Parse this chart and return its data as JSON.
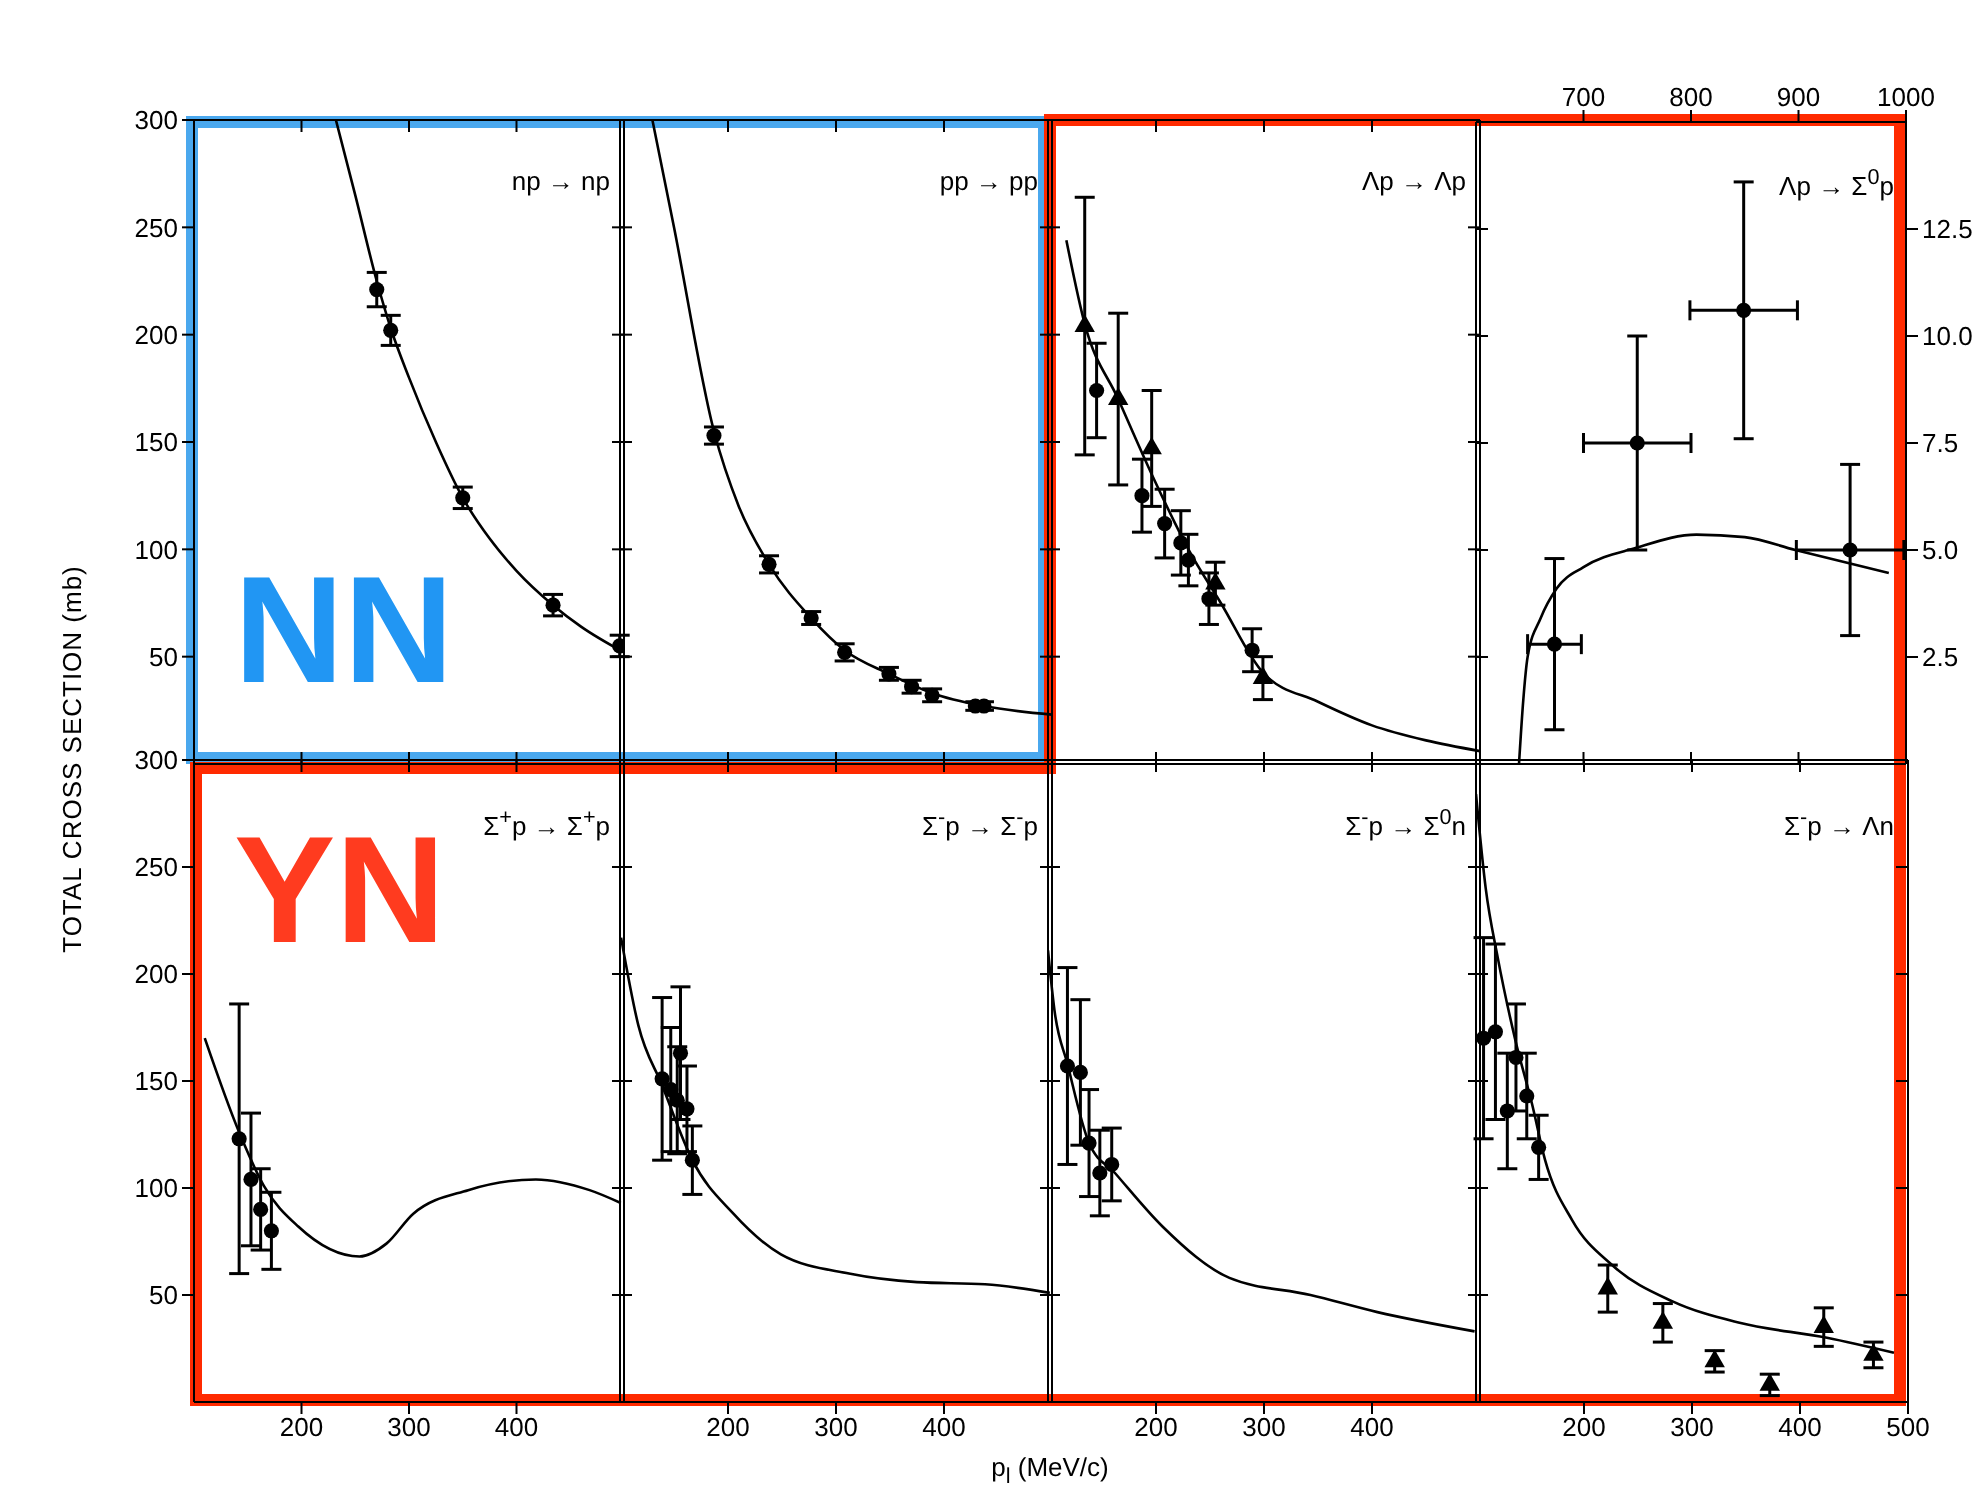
{
  "chart_data": [
    {
      "type": "scatter",
      "title": "np → np",
      "ylabel": "TOTAL CROSS SECTION (mb)",
      "annotations": [
        "NN"
      ],
      "xlim": [
        100,
        500
      ],
      "xticks": [
        200,
        300,
        400
      ],
      "ylim": [
        0,
        300
      ],
      "yticks": [
        50,
        100,
        150,
        200,
        250,
        300
      ],
      "tick_labels": "y",
      "series": [
        {
          "type": "line",
          "marker": "none",
          "color": "#000000",
          "x": [
            232,
            250,
            270,
            283,
            300,
            325,
            350,
            375,
            400,
            434,
            460,
            500
          ],
          "values": [
            300,
            265,
            225,
            203,
            180,
            150,
            124,
            105,
            90,
            74,
            64,
            52
          ]
        },
        {
          "marker": "circle",
          "color": "#000000",
          "x": [
            270,
            283,
            350,
            434,
            496
          ],
          "values": [
            221,
            202,
            124,
            74,
            55
          ],
          "errors": [
            8,
            7,
            5,
            5,
            5
          ]
        }
      ]
    },
    {
      "type": "scatter",
      "title": "pp → pp",
      "xlim": [
        100,
        500
      ],
      "xticks": [
        200,
        300,
        400
      ],
      "ylim": [
        0,
        300
      ],
      "yticks": [
        50,
        100,
        150,
        200,
        250,
        300
      ],
      "tick_labels": false,
      "series": [
        {
          "type": "line",
          "marker": "none",
          "color": "#000000",
          "x": [
            130,
            150,
            187,
            210,
            238,
            277,
            308,
            349,
            389,
            437,
            500
          ],
          "values": [
            300,
            250,
            155,
            120,
            93,
            68,
            53,
            42,
            33,
            27,
            23
          ]
        },
        {
          "marker": "circle",
          "color": "#000000",
          "x": [
            187,
            238,
            277,
            308,
            349,
            370,
            389,
            429,
            437
          ],
          "values": [
            153,
            93,
            68,
            52,
            42,
            36,
            32,
            27,
            27
          ],
          "errors": [
            4,
            4,
            3,
            4,
            3,
            3,
            3,
            2,
            2
          ]
        }
      ]
    },
    {
      "type": "scatter",
      "title": "Λp → Λp",
      "xlim": [
        100,
        500
      ],
      "xticks": [
        200,
        300,
        400
      ],
      "ylim": [
        0,
        300
      ],
      "yticks": [
        50,
        100,
        150,
        200,
        250,
        300
      ],
      "tick_labels": false,
      "series": [
        {
          "type": "line",
          "marker": "none",
          "color": "#000000",
          "x": [
            117,
            134,
            165,
            196,
            230,
            260,
            300,
            350,
            400,
            450,
            500
          ],
          "values": [
            244,
            205,
            170,
            135,
            100,
            75,
            42,
            29,
            18,
            11,
            6
          ]
        },
        {
          "marker": "circle",
          "color": "#000000",
          "x": [
            145,
            187,
            208,
            223,
            230,
            249,
            289
          ],
          "values": [
            174,
            125,
            112,
            103,
            95,
            77,
            53
          ],
          "errors": [
            22,
            17,
            16,
            15,
            12,
            12,
            10
          ]
        },
        {
          "marker": "triangle",
          "color": "#000000",
          "x": [
            134,
            165,
            196,
            255,
            299
          ],
          "values": [
            204,
            170,
            147,
            84,
            40
          ],
          "errors": [
            60,
            40,
            27,
            10,
            10
          ]
        }
      ]
    },
    {
      "type": "scatter",
      "title": "Λp → Σ$^{0}$p",
      "xlim": [
        600,
        1000
      ],
      "xticks": [
        700,
        800,
        900,
        1000
      ],
      "ylim": [
        0,
        15
      ],
      "yticks": [
        {
          "value": 2.5,
          "label": "2.5"
        },
        {
          "value": 5,
          "label": "5.0"
        },
        {
          "value": 7.5,
          "label": "7.5"
        },
        {
          "value": 10,
          "label": "10.0"
        },
        {
          "value": 12.5,
          "label": "12.5"
        }
      ],
      "series": [
        {
          "type": "line",
          "marker": "none",
          "color": "#000000",
          "x": [
            640,
            644,
            648,
            660,
            675,
            700,
            749,
            805,
            850,
            897,
            984
          ],
          "values": [
            0,
            1.5,
            2.5,
            3.4,
            4.1,
            4.6,
            5.05,
            5.36,
            5.3,
            5.0,
            4.46
          ]
        },
        {
          "marker": "circle",
          "color": "#000000",
          "x": [
            673,
            750,
            849,
            948
          ],
          "values": [
            2.8,
            7.5,
            10.6,
            5.0
          ],
          "errors": [
            2.0,
            2.5,
            3.0,
            2.0
          ],
          "xerrors": [
            25,
            50,
            50,
            50
          ]
        }
      ]
    },
    {
      "type": "scatter",
      "title": "Σ$^{+}$p → Σ$^{+}$p",
      "annotations": [
        "YN"
      ],
      "xlim": [
        100,
        500
      ],
      "xticks": [
        200,
        300,
        400
      ],
      "ylim": [
        0,
        300
      ],
      "yticks": [
        50,
        100,
        150,
        200,
        250,
        300
      ],
      "series": [
        {
          "type": "line",
          "marker": "none",
          "color": "#000000",
          "x": [
            110,
            142,
            165,
            197,
            254,
            279,
            304,
            355,
            418,
            468,
            497
          ],
          "values": [
            170,
            126,
            101,
            82,
            68,
            74,
            88,
            99,
            104,
            99,
            93
          ]
        },
        {
          "marker": "circle",
          "color": "#000000",
          "x": [
            142,
            153,
            162,
            172
          ],
          "values": [
            123,
            104,
            90,
            80
          ],
          "errors": [
            63,
            31,
            19,
            18
          ]
        }
      ]
    },
    {
      "type": "scatter",
      "title": "Σ$^{-}$p → Σ$^{-}$p",
      "xlabel": "p$_{l}$ (MeV/c)",
      "xlim": [
        100,
        500
      ],
      "xticks": [
        200,
        300,
        400
      ],
      "ylim": [
        0,
        300
      ],
      "yticks": [
        50,
        100,
        150,
        200,
        250,
        300
      ],
      "tick_labels": "x",
      "series": [
        {
          "type": "line",
          "marker": "none",
          "color": "#000000",
          "x": [
            101,
            117,
            139,
            167,
            205,
            249,
            312,
            375,
            438,
            498
          ],
          "values": [
            217,
            176,
            148,
            113,
            88,
            69,
            60,
            56,
            55,
            51
          ]
        },
        {
          "marker": "circle",
          "color": "#000000",
          "x": [
            139,
            147,
            156,
            153,
            162,
            167
          ],
          "values": [
            151,
            146,
            163,
            141,
            137,
            113
          ],
          "errors": [
            38,
            29,
            31,
            25,
            20,
            16
          ]
        }
      ]
    },
    {
      "type": "scatter",
      "title": "Σ$^{-}$p → Σ$^{0}$n",
      "xlim": [
        100,
        500
      ],
      "xticks": [
        200,
        300,
        400
      ],
      "ylim": [
        0,
        300
      ],
      "yticks": [
        50,
        100,
        150,
        200,
        250,
        300
      ],
      "tick_labels": "x",
      "series": [
        {
          "type": "line",
          "marker": "none",
          "color": "#000000",
          "x": [
            100,
            106,
            118,
            138,
            162,
            206,
            268,
            343,
            405,
            495
          ],
          "values": [
            211,
            183,
            158,
            121,
            107,
            82,
            58,
            50,
            42,
            33
          ]
        },
        {
          "marker": "circle",
          "color": "#000000",
          "x": [
            118,
            130,
            138,
            148,
            159
          ],
          "values": [
            157,
            154,
            121,
            107,
            111
          ],
          "errors": [
            46,
            34,
            25,
            20,
            17
          ]
        }
      ]
    },
    {
      "type": "scatter",
      "title": "Σ$^{-}$p → Λn",
      "xlim": [
        100,
        500
      ],
      "xticks": [
        200,
        300,
        400,
        500
      ],
      "ylim": [
        0,
        300
      ],
      "yticks": [
        50,
        100,
        150,
        200,
        250,
        300
      ],
      "tick_labels": "x",
      "series": [
        {
          "type": "line",
          "marker": "none",
          "color": "#000000",
          "x": [
            100,
            109,
            120,
            136,
            152,
            164,
            189,
            226,
            282,
            344,
            425,
            487
          ],
          "values": [
            284,
            240,
            208,
            170,
            139,
            113,
            85,
            64,
            47,
            37,
            30,
            23
          ]
        },
        {
          "marker": "circle",
          "color": "#000000",
          "x": [
            107,
            118,
            129,
            137,
            147,
            158
          ],
          "values": [
            170,
            173,
            136,
            161,
            143,
            119
          ],
          "errors": [
            47,
            41,
            27,
            25,
            20,
            15
          ]
        },
        {
          "marker": "triangle",
          "color": "#000000",
          "x": [
            222,
            273,
            321,
            372,
            422,
            468
          ],
          "values": [
            53,
            37,
            19,
            8,
            35,
            22
          ],
          "errors": [
            11,
            9,
            5,
            5,
            9,
            6
          ]
        }
      ]
    }
  ]
}
